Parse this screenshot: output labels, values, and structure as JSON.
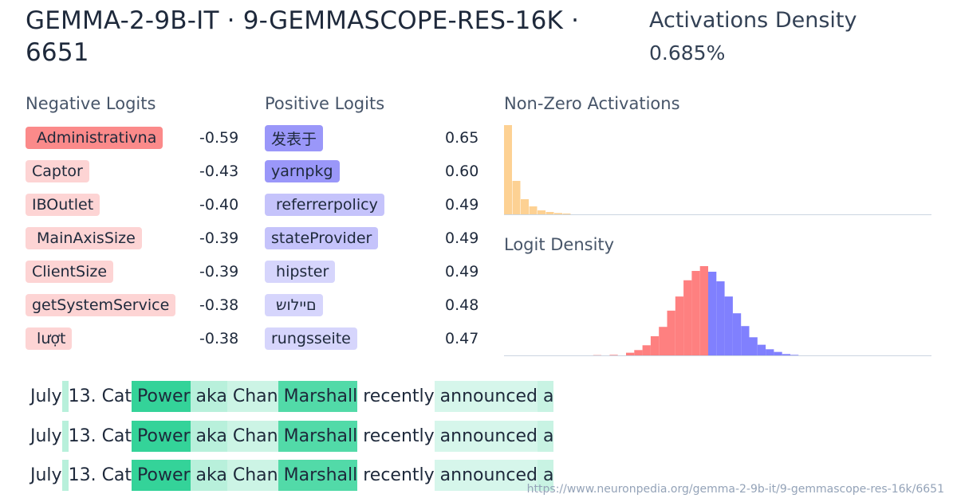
{
  "header": {
    "title": "GEMMA-2-9B-IT · 9-GEMMASCOPE-RES-16K · 6651",
    "density_label": "Activations Density",
    "density_value": "0.685%"
  },
  "negative_logits": {
    "title": "Negative Logits",
    "items": [
      {
        "token": " Administrativna",
        "value": "-0.59",
        "color": "#fb8a8a"
      },
      {
        "token": "Captor",
        "value": "-0.43",
        "color": "#fdd4d4"
      },
      {
        "token": "IBOutlet",
        "value": "-0.40",
        "color": "#fdd4d4"
      },
      {
        "token": " MainAxisSize",
        "value": "-0.39",
        "color": "#fdd4d4"
      },
      {
        "token": "ClientSize",
        "value": "-0.39",
        "color": "#fdd4d4"
      },
      {
        "token": "getSystemService",
        "value": "-0.38",
        "color": "#fdd4d4"
      },
      {
        "token": " lượt",
        "value": "-0.38",
        "color": "#fdd4d4"
      }
    ]
  },
  "positive_logits": {
    "title": "Positive Logits",
    "items": [
      {
        "token": "发表于",
        "value": "0.65",
        "color": "#9a97f9"
      },
      {
        "token": "yarnpkg",
        "value": "0.60",
        "color": "#9a97f9"
      },
      {
        "token": " referrerpolicy",
        "value": "0.49",
        "color": "#c5c3fb"
      },
      {
        "token": "stateProvider",
        "value": "0.49",
        "color": "#c5c3fb"
      },
      {
        "token": " hipster",
        "value": "0.49",
        "color": "#d6d5fc"
      },
      {
        "token": " םיילוש",
        "value": "0.48",
        "color": "#d6d5fc"
      },
      {
        "token": "rungsseite",
        "value": "0.47",
        "color": "#d6d5fc"
      }
    ]
  },
  "chart_data": [
    {
      "type": "bar",
      "title": "Non-Zero Activations",
      "color": "#fdd193",
      "values": [
        336,
        126,
        57,
        30,
        15,
        9,
        5,
        3
      ]
    },
    {
      "type": "bar",
      "title": "Logit Density",
      "negative_color": "#fe8080",
      "positive_color": "#8080fe",
      "negative_values": [
        1,
        0,
        2,
        0,
        10,
        20,
        38,
        72,
        107,
        168,
        221,
        282,
        317,
        335
      ],
      "positive_values": [
        314,
        278,
        221,
        158,
        110,
        68,
        40,
        23,
        13,
        5,
        2
      ]
    }
  ],
  "examples": [
    {
      "tokens": [
        {
          "t": "July",
          "a": 0
        },
        {
          "t": " ",
          "a": 0.35
        },
        {
          "t": "13.",
          "a": 0
        },
        {
          "t": " Cat",
          "a": 0
        },
        {
          "t": " Power",
          "a": 1
        },
        {
          "t": " aka",
          "a": 0.35
        },
        {
          "t": " Chan",
          "a": 0.25
        },
        {
          "t": " Marshall",
          "a": 0.85
        },
        {
          "t": " recently",
          "a": 0
        },
        {
          "t": " announced",
          "a": 0.2
        },
        {
          "t": " a",
          "a": 0.27
        }
      ]
    },
    {
      "tokens": [
        {
          "t": "July",
          "a": 0
        },
        {
          "t": " ",
          "a": 0.35
        },
        {
          "t": "13.",
          "a": 0
        },
        {
          "t": " Cat",
          "a": 0
        },
        {
          "t": " Power",
          "a": 1
        },
        {
          "t": " aka",
          "a": 0.35
        },
        {
          "t": " Chan",
          "a": 0.25
        },
        {
          "t": " Marshall",
          "a": 0.85
        },
        {
          "t": " recently",
          "a": 0
        },
        {
          "t": " announced",
          "a": 0.2
        },
        {
          "t": " a",
          "a": 0.27
        }
      ]
    },
    {
      "tokens": [
        {
          "t": "July",
          "a": 0
        },
        {
          "t": " ",
          "a": 0.35
        },
        {
          "t": "13.",
          "a": 0
        },
        {
          "t": " Cat",
          "a": 0
        },
        {
          "t": " Power",
          "a": 1
        },
        {
          "t": " aka",
          "a": 0.35
        },
        {
          "t": " Chan",
          "a": 0.25
        },
        {
          "t": " Marshall",
          "a": 0.85
        },
        {
          "t": " recently",
          "a": 0
        },
        {
          "t": " announced",
          "a": 0.2
        },
        {
          "t": " a",
          "a": 0.27
        }
      ]
    }
  ],
  "footer": {
    "url": "https://www.neuronpedia.org/gemma-2-9b-it/9-gemmascope-res-16k/6651"
  }
}
